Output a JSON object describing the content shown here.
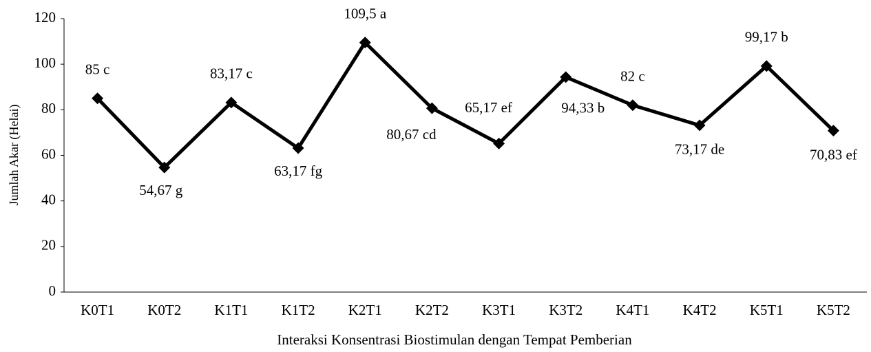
{
  "chart_data": {
    "type": "line",
    "x_label": "Interaksi Konsentrasi Biostimulan dengan Tempat Pemberian",
    "y_label": "Jumlah Akar (Helai)",
    "categories": [
      "K0T1",
      "K0T2",
      "K1T1",
      "K1T2",
      "K2T1",
      "K2T2",
      "K3T1",
      "K3T2",
      "K4T1",
      "K4T2",
      "K5T1",
      "K5T2"
    ],
    "series": [
      {
        "color": "#000000",
        "values": [
          85,
          54.67,
          83.17,
          63.17,
          109.5,
          80.67,
          65.17,
          94.33,
          82,
          73.17,
          99.17,
          70.83
        ],
        "value_labels": [
          "85 c",
          "54,67 g",
          "83,17 c",
          "63,17 fg",
          "109,5 a",
          "80,67 cd",
          "65,17 ef",
          "94,33 b",
          "82 c",
          "73,17 de",
          "99,17 b",
          "70,83 ef"
        ]
      }
    ],
    "ylim": [
      0,
      120
    ],
    "yticks": [
      0,
      20,
      40,
      60,
      80,
      100,
      120
    ],
    "grid": false
  }
}
